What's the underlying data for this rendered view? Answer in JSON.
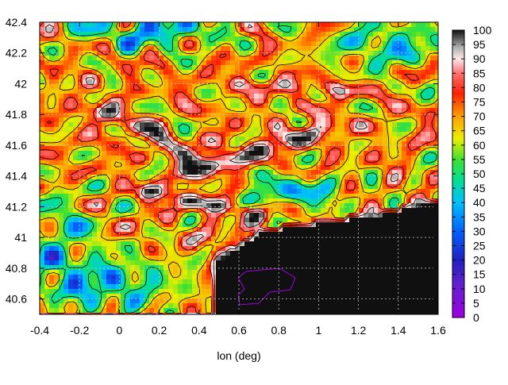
{
  "chart_data": {
    "type": "heatmap",
    "xlabel": "lon (deg)",
    "ylabel": "",
    "xlim": [
      -0.4,
      1.6
    ],
    "ylim": [
      40.5,
      42.4
    ],
    "x_ticks": [
      "-0.4",
      "-0.2",
      "0",
      "0.2",
      "0.4",
      "0.6",
      "0.8",
      "1",
      "1.2",
      "1.4",
      "1.6"
    ],
    "y_ticks": [
      "40.6",
      "40.8",
      "41",
      "41.2",
      "41.4",
      "41.6",
      "41.8",
      "42",
      "42.2",
      "42.4"
    ],
    "colorbar": {
      "range": [
        0,
        100
      ],
      "ticks": [
        "0",
        "5",
        "10",
        "15",
        "20",
        "25",
        "30",
        "35",
        "40",
        "45",
        "50",
        "55",
        "60",
        "65",
        "70",
        "75",
        "80",
        "85",
        "90",
        "95",
        "100"
      ]
    },
    "grid": true,
    "grid_style": "dashed",
    "contours": true
  }
}
